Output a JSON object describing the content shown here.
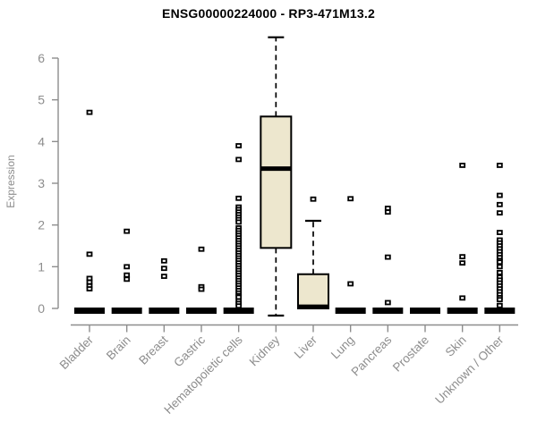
{
  "colors": {
    "box_fill": "#EDE7CE",
    "box_stroke": "#000000",
    "axis": "#8d8d8d",
    "tick_text": "#8d8d8d",
    "title_text": "#000000",
    "outlier_fill": "#ffffff",
    "background": "#ffffff"
  },
  "chart_data": {
    "type": "boxplot",
    "title": "ENSG00000224000 - RP3-471M13.2",
    "xlabel": "",
    "ylabel": "Expression",
    "ylim": [
      0,
      6.6
    ],
    "yticks": [
      0,
      1,
      2,
      3,
      4,
      5,
      6
    ],
    "grid": false,
    "legend": "none",
    "categories": [
      "Bladder",
      "Brain",
      "Breast",
      "Gastric",
      "Hematopoietic cells",
      "Kidney",
      "Liver",
      "Lung",
      "Pancreas",
      "Prostate",
      "Skin",
      "Unknown / Other"
    ],
    "series": [
      {
        "category": "Bladder",
        "box": {
          "min": 0,
          "q1": 0,
          "median": 0,
          "q3": 0,
          "max": 0
        },
        "outliers": [
          4.7,
          1.3,
          0.72,
          0.63,
          0.54,
          0.47
        ]
      },
      {
        "category": "Brain",
        "box": {
          "min": 0,
          "q1": 0,
          "median": 0,
          "q3": 0,
          "max": 0
        },
        "outliers": [
          1.85,
          1.0,
          0.8,
          0.7
        ]
      },
      {
        "category": "Breast",
        "box": {
          "min": 0,
          "q1": 0,
          "median": 0,
          "q3": 0,
          "max": 0
        },
        "outliers": [
          1.14,
          0.96,
          0.77
        ]
      },
      {
        "category": "Gastric",
        "box": {
          "min": 0,
          "q1": 0,
          "median": 0,
          "q3": 0,
          "max": 0
        },
        "outliers": [
          1.42,
          0.52,
          0.46
        ]
      },
      {
        "category": "Hematopoietic cells",
        "box": {
          "min": 0,
          "q1": 0,
          "median": 0,
          "q3": 0,
          "max": 0
        },
        "outliers": [
          3.9,
          3.57,
          2.64,
          2.43,
          2.37,
          2.31,
          2.25,
          2.19,
          2.13,
          2.07,
          1.93,
          1.87,
          1.81,
          1.75,
          1.69,
          1.63,
          1.57,
          1.51,
          1.45,
          1.39,
          1.33,
          1.27,
          1.21,
          1.15,
          1.09,
          1.03,
          0.97,
          0.91,
          0.85,
          0.79,
          0.73,
          0.67,
          0.61,
          0.55,
          0.49,
          0.43,
          0.37,
          0.31,
          0.27,
          0.18,
          0.12,
          0.06
        ]
      },
      {
        "category": "Kidney",
        "box": {
          "min": 0,
          "q1": 1.45,
          "median": 3.35,
          "q3": 4.6,
          "max": 6.5
        },
        "outliers": []
      },
      {
        "category": "Liver",
        "box": {
          "min": 0,
          "q1": 0,
          "median": 0.04,
          "q3": 0.82,
          "max": 2.1
        },
        "outliers": [
          2.62
        ]
      },
      {
        "category": "Lung",
        "box": {
          "min": 0,
          "q1": 0,
          "median": 0,
          "q3": 0,
          "max": 0
        },
        "outliers": [
          2.63,
          0.59
        ]
      },
      {
        "category": "Pancreas",
        "box": {
          "min": 0,
          "q1": 0,
          "median": 0,
          "q3": 0,
          "max": 0
        },
        "outliers": [
          2.4,
          2.31,
          1.23,
          0.14
        ]
      },
      {
        "category": "Prostate",
        "box": {
          "min": 0,
          "q1": 0,
          "median": 0,
          "q3": 0,
          "max": 0
        },
        "outliers": []
      },
      {
        "category": "Skin",
        "box": {
          "min": 0,
          "q1": 0,
          "median": 0,
          "q3": 0,
          "max": 0
        },
        "outliers": [
          3.43,
          1.24,
          1.09,
          0.25
        ]
      },
      {
        "category": "Unknown / Other",
        "box": {
          "min": 0,
          "q1": 0,
          "median": 0,
          "q3": 0,
          "max": 0
        },
        "outliers": [
          3.43,
          2.71,
          2.49,
          2.29,
          1.82,
          1.64,
          1.57,
          1.5,
          1.43,
          1.36,
          1.29,
          1.22,
          1.15,
          1.11,
          1.0,
          0.86,
          0.75,
          0.68,
          0.61,
          0.54,
          0.47,
          0.4,
          0.33,
          0.26,
          0.21,
          0.07
        ]
      }
    ]
  }
}
